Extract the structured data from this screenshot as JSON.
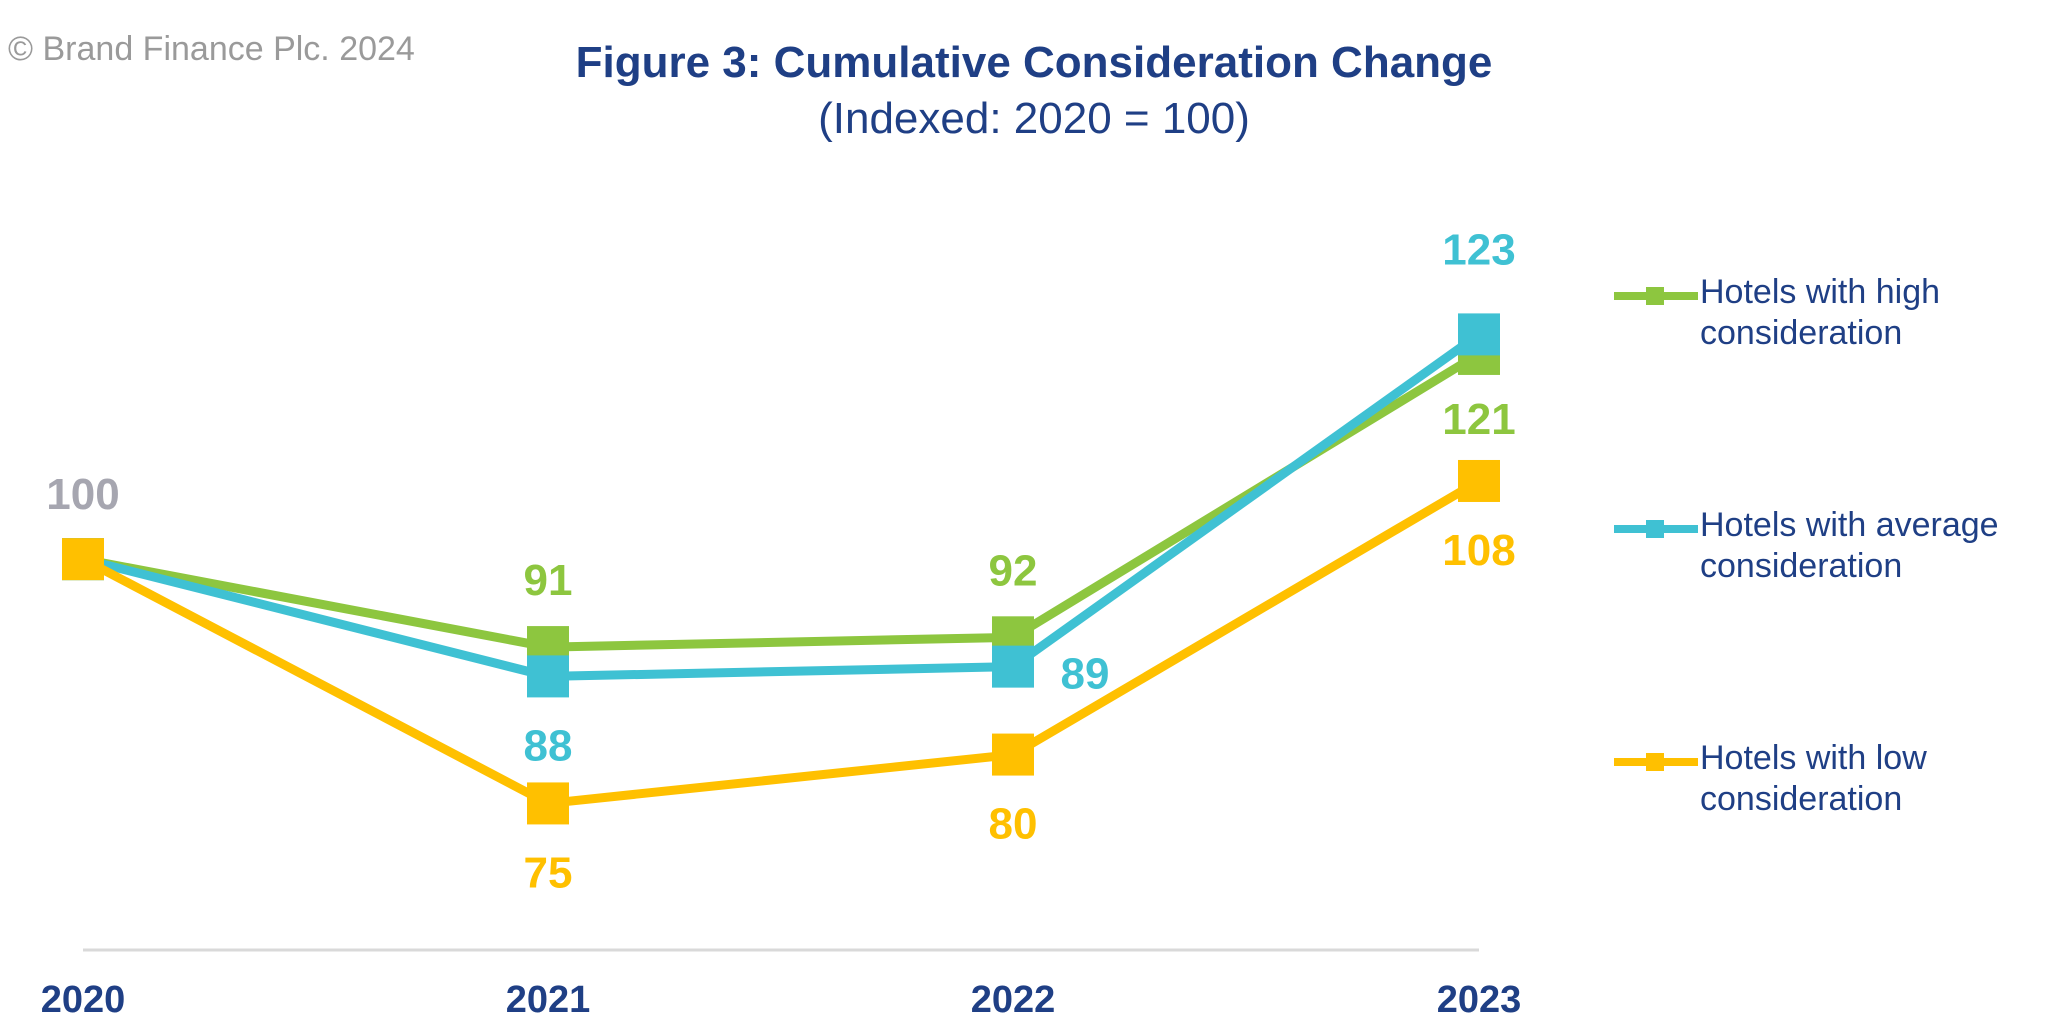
{
  "copyright": "© Brand Finance Plc. 2024",
  "title": "Figure 3: Cumulative Consideration Change",
  "subtitle": "(Indexed: 2020 = 100)",
  "colors": {
    "high": "#8dc63f",
    "average": "#3fc1d3",
    "low": "#ffc000",
    "start_label": "#a6a6b0",
    "axis_text": "#1f3f85",
    "axis_line": "#d9d9d9"
  },
  "legend": [
    {
      "key": "high",
      "line1": "Hotels with high",
      "line2": "consideration"
    },
    {
      "key": "average",
      "line1": "Hotels with average",
      "line2": "consideration"
    },
    {
      "key": "low",
      "line1": "Hotels with low",
      "line2": "consideration"
    }
  ],
  "chart_data": {
    "type": "line",
    "x": [
      "2020",
      "2021",
      "2022",
      "2023"
    ],
    "ylim": [
      60,
      130
    ],
    "grid": false,
    "legend_position": "right",
    "start_label": "100",
    "series": [
      {
        "key": "high",
        "name": "Hotels with high consideration",
        "values": [
          100,
          91,
          92,
          121
        ],
        "labels": [
          "",
          "91",
          "92",
          "121"
        ]
      },
      {
        "key": "average",
        "name": "Hotels with average consideration",
        "values": [
          100,
          88,
          89,
          123
        ],
        "labels": [
          "",
          "88",
          "89",
          "123"
        ]
      },
      {
        "key": "low",
        "name": "Hotels with low consideration",
        "values": [
          100,
          75,
          80,
          108
        ],
        "labels": [
          "",
          "75",
          "80",
          "108"
        ]
      }
    ]
  }
}
